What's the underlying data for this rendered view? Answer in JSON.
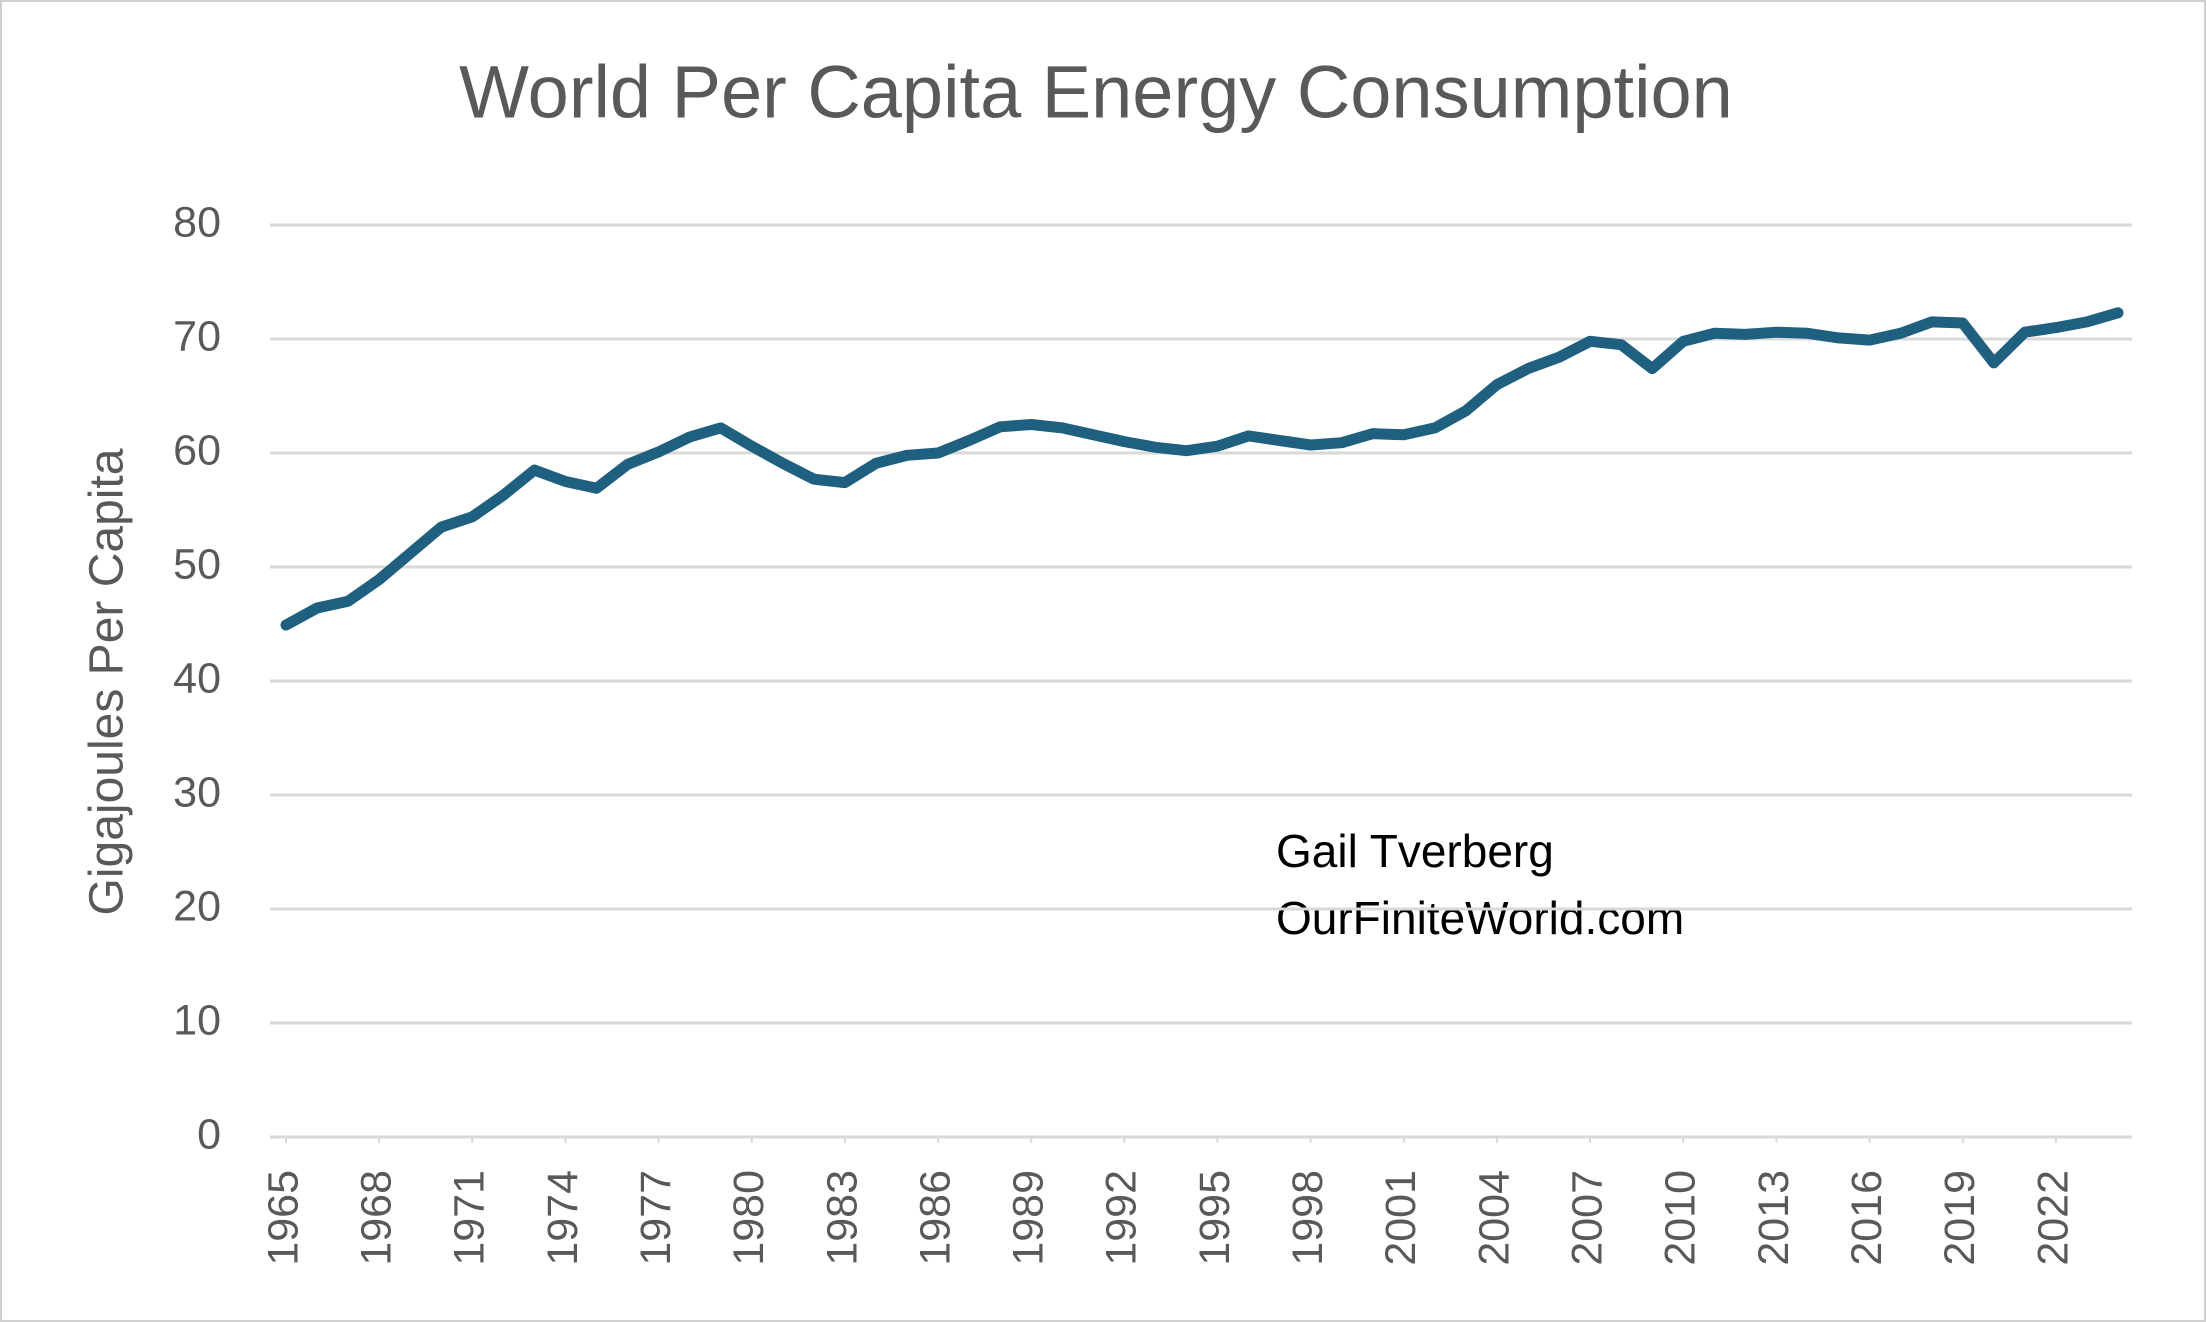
{
  "chart_data": {
    "type": "line",
    "title": "World Per Capita Energy Consumption",
    "y_label": "Gigajoules Per Capita",
    "annotations": [
      "Gail Tverberg",
      "OurFiniteWorld.com"
    ],
    "x": [
      1965,
      1966,
      1967,
      1968,
      1969,
      1970,
      1971,
      1972,
      1973,
      1974,
      1975,
      1976,
      1977,
      1978,
      1979,
      1980,
      1981,
      1982,
      1983,
      1984,
      1985,
      1986,
      1987,
      1988,
      1989,
      1990,
      1991,
      1992,
      1993,
      1994,
      1995,
      1996,
      1997,
      1998,
      1999,
      2000,
      2001,
      2002,
      2003,
      2004,
      2005,
      2006,
      2007,
      2008,
      2009,
      2010,
      2011,
      2012,
      2013,
      2014,
      2015,
      2016,
      2017,
      2018,
      2019,
      2020,
      2021,
      2022,
      2023,
      2024
    ],
    "series": [
      {
        "name": "World Per Capita Energy Consumption",
        "color": "#1f5f7f",
        "values": [
          44.9,
          46.4,
          47.0,
          48.9,
          51.2,
          53.5,
          54.4,
          56.3,
          58.5,
          57.5,
          56.9,
          59.0,
          60.1,
          61.4,
          62.2,
          60.6,
          59.1,
          57.7,
          57.4,
          59.1,
          59.8,
          60.0,
          61.1,
          62.3,
          62.5,
          62.2,
          61.6,
          61.0,
          60.5,
          60.2,
          60.6,
          61.5,
          61.1,
          60.7,
          60.9,
          61.7,
          61.6,
          62.2,
          63.7,
          66.0,
          67.4,
          68.4,
          69.8,
          69.5,
          67.4,
          69.8,
          70.5,
          70.4,
          70.6,
          70.5,
          70.1,
          69.9,
          70.5,
          71.5,
          71.4,
          67.9,
          70.6,
          71.0,
          71.5,
          72.3
        ]
      }
    ],
    "xlim": [
      1965,
      2024
    ],
    "xticks": [
      1965,
      1968,
      1971,
      1974,
      1977,
      1980,
      1983,
      1986,
      1989,
      1992,
      1995,
      1998,
      2001,
      2004,
      2007,
      2010,
      2013,
      2016,
      2019,
      2022
    ],
    "ylim": [
      0,
      80
    ],
    "yticks": [
      0,
      10,
      20,
      30,
      40,
      50,
      60,
      70,
      80
    ],
    "grid": true
  }
}
